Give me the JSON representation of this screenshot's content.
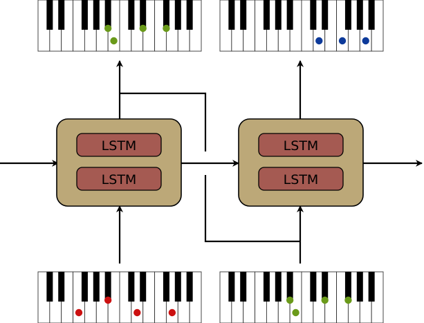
{
  "diagram": {
    "type": "stacked-lstm-music-generation",
    "cells": [
      {
        "name": "lstm-block-left",
        "layers": [
          "LSTM",
          "LSTM"
        ]
      },
      {
        "name": "lstm-block-right",
        "layers": [
          "LSTM",
          "LSTM"
        ]
      }
    ],
    "keyboards": [
      {
        "name": "keyboard-output-left",
        "role": "output",
        "dot_color": "#6a9a1a",
        "pressed_keys": [
          "black-4",
          "white-6",
          "black-6",
          "black-7"
        ]
      },
      {
        "name": "keyboard-output-right",
        "role": "output",
        "dot_color": "#0d3a9a",
        "pressed_keys": [
          "white-8",
          "white-10",
          "white-12"
        ]
      },
      {
        "name": "keyboard-input-left",
        "role": "input",
        "dot_color": "#cc1111",
        "pressed_keys": [
          "white-3",
          "black-4",
          "white-8",
          "white-11"
        ]
      },
      {
        "name": "keyboard-input-right",
        "role": "input",
        "dot_color": "#6a9a1a",
        "pressed_keys": [
          "black-4",
          "white-6",
          "black-6",
          "black-7"
        ]
      }
    ],
    "colors": {
      "block_fill": "#bca878",
      "layer_fill": "#a55a52",
      "stroke": "#000000"
    }
  }
}
